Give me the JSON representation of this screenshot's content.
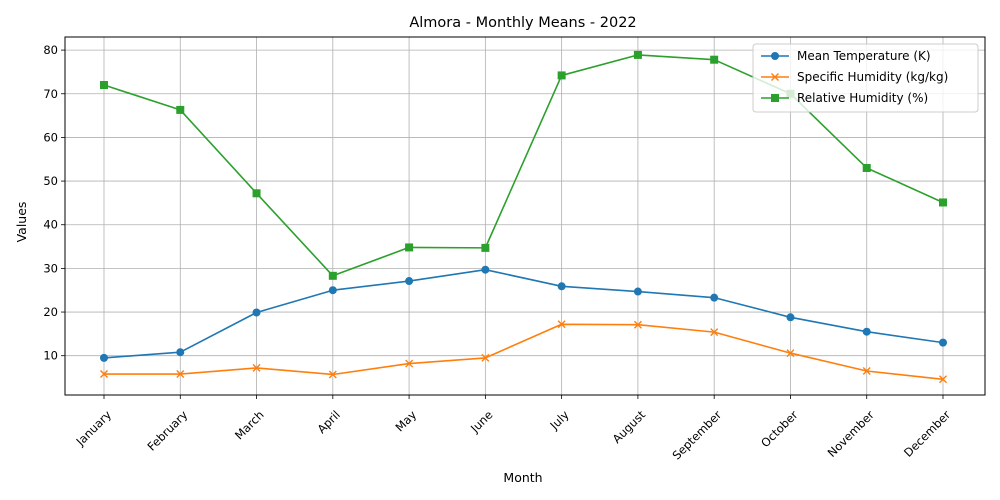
{
  "chart_data": {
    "type": "line",
    "title": "Almora - Monthly Means - 2022",
    "xlabel": "Month",
    "ylabel": "Values",
    "categories": [
      "January",
      "February",
      "March",
      "April",
      "May",
      "June",
      "July",
      "August",
      "September",
      "October",
      "November",
      "December"
    ],
    "ylim": [
      1,
      83
    ],
    "yticks": [
      10,
      20,
      30,
      40,
      50,
      60,
      70,
      80
    ],
    "grid": true,
    "legend_position": "top-right",
    "series": [
      {
        "name": "Mean Temperature (K)",
        "color": "#1f77b4",
        "marker": "circle",
        "values": [
          9.5,
          10.8,
          19.9,
          25.0,
          27.1,
          29.7,
          25.9,
          24.7,
          23.3,
          18.8,
          15.5,
          13.0
        ]
      },
      {
        "name": "Specific Humidity (kg/kg)",
        "color": "#ff7f0e",
        "marker": "x",
        "values": [
          5.8,
          5.8,
          7.2,
          5.7,
          8.2,
          9.5,
          17.2,
          17.1,
          15.4,
          10.6,
          6.5,
          4.6
        ]
      },
      {
        "name": "Relative Humidity (%)",
        "color": "#2ca02c",
        "marker": "square",
        "values": [
          72.0,
          66.3,
          47.2,
          28.3,
          34.8,
          34.7,
          74.2,
          78.9,
          77.8,
          70.0,
          53.0,
          45.1
        ]
      }
    ]
  }
}
